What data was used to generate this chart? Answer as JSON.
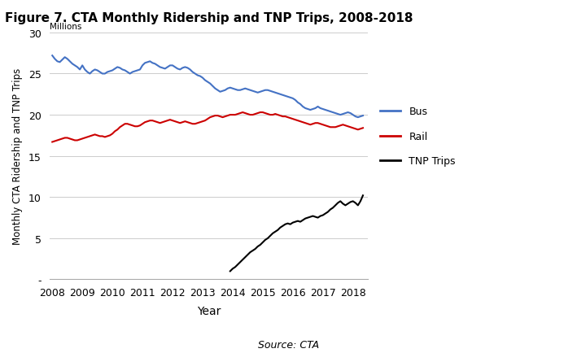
{
  "title": "Figure 7. CTA Monthly Ridership and TNP Trips, 2008-2018",
  "xlabel": "Year",
  "ylabel": "Monthly CTA Ridership and TNP Trips",
  "ylabel_millions": "Millions",
  "source": "Source: CTA",
  "ylim": [
    0,
    30
  ],
  "yticks": [
    0,
    5,
    10,
    15,
    20,
    25,
    30
  ],
  "ytick_labels": [
    "-",
    "5",
    "10",
    "15",
    "20",
    "25",
    "30"
  ],
  "xlim": [
    2007.9,
    2018.5
  ],
  "xticks": [
    2008,
    2009,
    2010,
    2011,
    2012,
    2013,
    2014,
    2015,
    2016,
    2017,
    2018
  ],
  "bus_color": "#4472C4",
  "rail_color": "#CC0000",
  "tnp_color": "#000000",
  "background_color": "#FFFFFF",
  "grid_color": "#CCCCCC",
  "legend_entries": [
    "Bus",
    "Rail",
    "TNP Trips"
  ],
  "bus_data": {
    "x": [
      2008.0,
      2008.083,
      2008.167,
      2008.25,
      2008.333,
      2008.417,
      2008.5,
      2008.583,
      2008.667,
      2008.75,
      2008.833,
      2008.917,
      2009.0,
      2009.083,
      2009.167,
      2009.25,
      2009.333,
      2009.417,
      2009.5,
      2009.583,
      2009.667,
      2009.75,
      2009.833,
      2009.917,
      2010.0,
      2010.083,
      2010.167,
      2010.25,
      2010.333,
      2010.417,
      2010.5,
      2010.583,
      2010.667,
      2010.75,
      2010.833,
      2010.917,
      2011.0,
      2011.083,
      2011.167,
      2011.25,
      2011.333,
      2011.417,
      2011.5,
      2011.583,
      2011.667,
      2011.75,
      2011.833,
      2011.917,
      2012.0,
      2012.083,
      2012.167,
      2012.25,
      2012.333,
      2012.417,
      2012.5,
      2012.583,
      2012.667,
      2012.75,
      2012.833,
      2012.917,
      2013.0,
      2013.083,
      2013.167,
      2013.25,
      2013.333,
      2013.417,
      2013.5,
      2013.583,
      2013.667,
      2013.75,
      2013.833,
      2013.917,
      2014.0,
      2014.083,
      2014.167,
      2014.25,
      2014.333,
      2014.417,
      2014.5,
      2014.583,
      2014.667,
      2014.75,
      2014.833,
      2014.917,
      2015.0,
      2015.083,
      2015.167,
      2015.25,
      2015.333,
      2015.417,
      2015.5,
      2015.583,
      2015.667,
      2015.75,
      2015.833,
      2015.917,
      2016.0,
      2016.083,
      2016.167,
      2016.25,
      2016.333,
      2016.417,
      2016.5,
      2016.583,
      2016.667,
      2016.75,
      2016.833,
      2016.917,
      2017.0,
      2017.083,
      2017.167,
      2017.25,
      2017.333,
      2017.417,
      2017.5,
      2017.583,
      2017.667,
      2017.75,
      2017.833,
      2017.917,
      2018.0,
      2018.083,
      2018.167,
      2018.25,
      2018.333
    ],
    "y": [
      27.2,
      26.8,
      26.5,
      26.4,
      26.7,
      27.0,
      26.8,
      26.5,
      26.2,
      26.0,
      25.8,
      25.5,
      26.0,
      25.5,
      25.2,
      25.0,
      25.3,
      25.5,
      25.4,
      25.2,
      25.0,
      25.0,
      25.2,
      25.3,
      25.4,
      25.6,
      25.8,
      25.7,
      25.5,
      25.4,
      25.2,
      25.0,
      25.2,
      25.3,
      25.4,
      25.5,
      26.0,
      26.3,
      26.4,
      26.5,
      26.3,
      26.2,
      26.0,
      25.8,
      25.7,
      25.6,
      25.8,
      26.0,
      26.0,
      25.8,
      25.6,
      25.5,
      25.7,
      25.8,
      25.7,
      25.5,
      25.2,
      25.0,
      24.8,
      24.7,
      24.5,
      24.2,
      24.0,
      23.8,
      23.5,
      23.2,
      23.0,
      22.8,
      22.9,
      23.0,
      23.2,
      23.3,
      23.2,
      23.1,
      23.0,
      23.0,
      23.1,
      23.2,
      23.1,
      23.0,
      22.9,
      22.8,
      22.7,
      22.8,
      22.9,
      23.0,
      23.0,
      22.9,
      22.8,
      22.7,
      22.6,
      22.5,
      22.4,
      22.3,
      22.2,
      22.1,
      22.0,
      21.8,
      21.5,
      21.3,
      21.0,
      20.8,
      20.7,
      20.6,
      20.7,
      20.8,
      21.0,
      20.8,
      20.7,
      20.6,
      20.5,
      20.4,
      20.3,
      20.2,
      20.1,
      20.0,
      20.1,
      20.2,
      20.3,
      20.2,
      20.0,
      19.8,
      19.7,
      19.8,
      19.9
    ]
  },
  "rail_data": {
    "x": [
      2008.0,
      2008.083,
      2008.167,
      2008.25,
      2008.333,
      2008.417,
      2008.5,
      2008.583,
      2008.667,
      2008.75,
      2008.833,
      2008.917,
      2009.0,
      2009.083,
      2009.167,
      2009.25,
      2009.333,
      2009.417,
      2009.5,
      2009.583,
      2009.667,
      2009.75,
      2009.833,
      2009.917,
      2010.0,
      2010.083,
      2010.167,
      2010.25,
      2010.333,
      2010.417,
      2010.5,
      2010.583,
      2010.667,
      2010.75,
      2010.833,
      2010.917,
      2011.0,
      2011.083,
      2011.167,
      2011.25,
      2011.333,
      2011.417,
      2011.5,
      2011.583,
      2011.667,
      2011.75,
      2011.833,
      2011.917,
      2012.0,
      2012.083,
      2012.167,
      2012.25,
      2012.333,
      2012.417,
      2012.5,
      2012.583,
      2012.667,
      2012.75,
      2012.833,
      2012.917,
      2013.0,
      2013.083,
      2013.167,
      2013.25,
      2013.333,
      2013.417,
      2013.5,
      2013.583,
      2013.667,
      2013.75,
      2013.833,
      2013.917,
      2014.0,
      2014.083,
      2014.167,
      2014.25,
      2014.333,
      2014.417,
      2014.5,
      2014.583,
      2014.667,
      2014.75,
      2014.833,
      2014.917,
      2015.0,
      2015.083,
      2015.167,
      2015.25,
      2015.333,
      2015.417,
      2015.5,
      2015.583,
      2015.667,
      2015.75,
      2015.833,
      2015.917,
      2016.0,
      2016.083,
      2016.167,
      2016.25,
      2016.333,
      2016.417,
      2016.5,
      2016.583,
      2016.667,
      2016.75,
      2016.833,
      2016.917,
      2017.0,
      2017.083,
      2017.167,
      2017.25,
      2017.333,
      2017.417,
      2017.5,
      2017.583,
      2017.667,
      2017.75,
      2017.833,
      2017.917,
      2018.0,
      2018.083,
      2018.167,
      2018.25,
      2018.333
    ],
    "y": [
      16.7,
      16.8,
      16.9,
      17.0,
      17.1,
      17.2,
      17.2,
      17.1,
      17.0,
      16.9,
      16.9,
      17.0,
      17.1,
      17.2,
      17.3,
      17.4,
      17.5,
      17.6,
      17.5,
      17.4,
      17.4,
      17.3,
      17.4,
      17.5,
      17.7,
      18.0,
      18.2,
      18.5,
      18.7,
      18.9,
      18.9,
      18.8,
      18.7,
      18.6,
      18.6,
      18.7,
      18.9,
      19.1,
      19.2,
      19.3,
      19.3,
      19.2,
      19.1,
      19.0,
      19.1,
      19.2,
      19.3,
      19.4,
      19.3,
      19.2,
      19.1,
      19.0,
      19.1,
      19.2,
      19.1,
      19.0,
      18.9,
      18.9,
      19.0,
      19.1,
      19.2,
      19.3,
      19.5,
      19.7,
      19.8,
      19.9,
      19.9,
      19.8,
      19.7,
      19.8,
      19.9,
      20.0,
      20.0,
      20.0,
      20.1,
      20.2,
      20.3,
      20.2,
      20.1,
      20.0,
      20.0,
      20.1,
      20.2,
      20.3,
      20.3,
      20.2,
      20.1,
      20.0,
      20.0,
      20.1,
      20.0,
      19.9,
      19.8,
      19.8,
      19.7,
      19.6,
      19.5,
      19.4,
      19.3,
      19.2,
      19.1,
      19.0,
      18.9,
      18.8,
      18.9,
      19.0,
      19.0,
      18.9,
      18.8,
      18.7,
      18.6,
      18.5,
      18.5,
      18.5,
      18.6,
      18.7,
      18.8,
      18.7,
      18.6,
      18.5,
      18.4,
      18.3,
      18.2,
      18.3,
      18.4
    ]
  },
  "tnp_data": {
    "x": [
      2013.917,
      2014.0,
      2014.083,
      2014.167,
      2014.25,
      2014.333,
      2014.417,
      2014.5,
      2014.583,
      2014.667,
      2014.75,
      2014.833,
      2014.917,
      2015.0,
      2015.083,
      2015.167,
      2015.25,
      2015.333,
      2015.417,
      2015.5,
      2015.583,
      2015.667,
      2015.75,
      2015.833,
      2015.917,
      2016.0,
      2016.083,
      2016.167,
      2016.25,
      2016.333,
      2016.417,
      2016.5,
      2016.583,
      2016.667,
      2016.75,
      2016.833,
      2016.917,
      2017.0,
      2017.083,
      2017.167,
      2017.25,
      2017.333,
      2017.417,
      2017.5,
      2017.583,
      2017.667,
      2017.75,
      2017.833,
      2017.917,
      2018.0,
      2018.083,
      2018.167,
      2018.25,
      2018.333
    ],
    "y": [
      1.0,
      1.3,
      1.5,
      1.8,
      2.1,
      2.4,
      2.7,
      3.0,
      3.3,
      3.5,
      3.7,
      4.0,
      4.2,
      4.5,
      4.8,
      5.0,
      5.3,
      5.6,
      5.8,
      6.0,
      6.3,
      6.5,
      6.7,
      6.8,
      6.7,
      6.9,
      7.0,
      7.1,
      7.0,
      7.2,
      7.4,
      7.5,
      7.6,
      7.7,
      7.6,
      7.5,
      7.7,
      7.8,
      8.0,
      8.2,
      8.5,
      8.7,
      9.0,
      9.3,
      9.5,
      9.2,
      9.0,
      9.2,
      9.4,
      9.5,
      9.3,
      9.0,
      9.5,
      10.2
    ]
  }
}
